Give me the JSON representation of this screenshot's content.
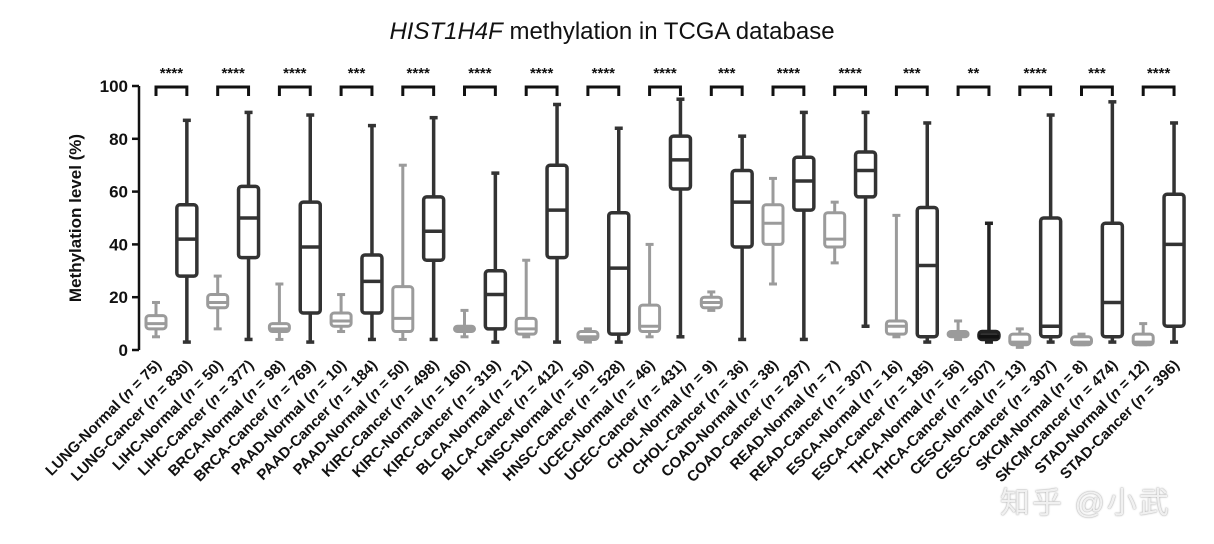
{
  "chart_data": {
    "type": "boxplot",
    "title_gene": "HIST1H4F",
    "title_rest": " methylation in TCGA database",
    "ylabel": "Methylation level (%)",
    "ylim": [
      0,
      100
    ],
    "yticks": [
      0,
      20,
      40,
      60,
      80,
      100
    ],
    "colors": {
      "normal": "#9b9b9b",
      "cancer": "#333333",
      "cesc_cancer": "#222222",
      "axis": "#111111"
    },
    "groups": [
      {
        "label": "LUNG-Normal",
        "n": "75",
        "type": "normal",
        "min": 5,
        "q1": 8,
        "median": 10,
        "q3": 13,
        "max": 18
      },
      {
        "label": "LUNG-Cancer",
        "n": "830",
        "type": "cancer",
        "min": 3,
        "q1": 28,
        "median": 42,
        "q3": 55,
        "max": 87
      },
      {
        "label": "LIHC-Normal",
        "n": "50",
        "type": "normal",
        "min": 8,
        "q1": 16,
        "median": 18,
        "q3": 21,
        "max": 28
      },
      {
        "label": "LIHC-Cancer",
        "n": "377",
        "type": "cancer",
        "min": 4,
        "q1": 35,
        "median": 50,
        "q3": 62,
        "max": 90
      },
      {
        "label": "BRCA-Normal",
        "n": "98",
        "type": "normal",
        "min": 4,
        "q1": 7,
        "median": 8,
        "q3": 10,
        "max": 25
      },
      {
        "label": "BRCA-Cancer",
        "n": "769",
        "type": "cancer",
        "min": 3,
        "q1": 14,
        "median": 39,
        "q3": 56,
        "max": 89
      },
      {
        "label": "PAAD-Normal",
        "n": "10",
        "type": "normal",
        "min": 7,
        "q1": 9,
        "median": 11,
        "q3": 14,
        "max": 21
      },
      {
        "label": "PAAD-Cancer",
        "n": "184",
        "type": "cancer",
        "min": 4,
        "q1": 14,
        "median": 26,
        "q3": 36,
        "max": 85
      },
      {
        "label": "PAAD-Normal",
        "n": "50",
        "type": "normal",
        "min": 4,
        "q1": 7,
        "median": 12,
        "q3": 24,
        "max": 70
      },
      {
        "label": "KIRC-Cancer",
        "n": "498",
        "type": "cancer",
        "min": 4,
        "q1": 34,
        "median": 45,
        "q3": 58,
        "max": 88
      },
      {
        "label": "KIRC-Normal",
        "n": "160",
        "type": "normal",
        "min": 5,
        "q1": 7,
        "median": 8,
        "q3": 9,
        "max": 15
      },
      {
        "label": "KIRC-Cancer",
        "n": "319",
        "type": "cancer",
        "min": 3,
        "q1": 8,
        "median": 21,
        "q3": 30,
        "max": 67
      },
      {
        "label": "BLCA-Normal",
        "n": "21",
        "type": "normal",
        "min": 5,
        "q1": 6,
        "median": 8,
        "q3": 12,
        "max": 34
      },
      {
        "label": "BLCA-Cancer",
        "n": "412",
        "type": "cancer",
        "min": 3,
        "q1": 35,
        "median": 53,
        "q3": 70,
        "max": 93
      },
      {
        "label": "HNSC-Normal",
        "n": "50",
        "type": "normal",
        "min": 3,
        "q1": 4,
        "median": 5,
        "q3": 7,
        "max": 8
      },
      {
        "label": "HNSC-Cancer",
        "n": "528",
        "type": "cancer",
        "min": 3,
        "q1": 6,
        "median": 31,
        "q3": 52,
        "max": 84
      },
      {
        "label": "UCEC-Normal",
        "n": "46",
        "type": "normal",
        "min": 5,
        "q1": 7,
        "median": 9,
        "q3": 17,
        "max": 40
      },
      {
        "label": "UCEC-Cancer",
        "n": "431",
        "type": "cancer",
        "min": 5,
        "q1": 61,
        "median": 72,
        "q3": 81,
        "max": 95
      },
      {
        "label": "CHOL-Normal",
        "n": "9",
        "type": "normal",
        "min": 15,
        "q1": 16,
        "median": 18,
        "q3": 20,
        "max": 22
      },
      {
        "label": "CHOL-Cancer",
        "n": "36",
        "type": "cancer",
        "min": 4,
        "q1": 39,
        "median": 56,
        "q3": 68,
        "max": 81
      },
      {
        "label": "COAD-Normal",
        "n": "38",
        "type": "normal",
        "min": 25,
        "q1": 40,
        "median": 48,
        "q3": 55,
        "max": 65
      },
      {
        "label": "COAD-Cancer",
        "n": "297",
        "type": "cancer",
        "min": 4,
        "q1": 53,
        "median": 64,
        "q3": 73,
        "max": 90
      },
      {
        "label": "READ-Normal",
        "n": "7",
        "type": "normal",
        "min": 33,
        "q1": 39,
        "median": 42,
        "q3": 52,
        "max": 56
      },
      {
        "label": "READ-Cancer",
        "n": "307",
        "type": "cancer",
        "min": 9,
        "q1": 58,
        "median": 68,
        "q3": 75,
        "max": 90
      },
      {
        "label": "ESCA-Normal",
        "n": "16",
        "type": "normal",
        "min": 5,
        "q1": 6,
        "median": 9,
        "q3": 11,
        "max": 51
      },
      {
        "label": "ESCA-Cancer",
        "n": "185",
        "type": "cancer",
        "min": 3,
        "q1": 5,
        "median": 32,
        "q3": 54,
        "max": 86
      },
      {
        "label": "THCA-Normal",
        "n": "56",
        "type": "normal",
        "min": 4,
        "q1": 5,
        "median": 6,
        "q3": 7,
        "max": 11
      },
      {
        "label": "THCA-Cancer",
        "n": "507",
        "type": "cancer_dark",
        "min": 3,
        "q1": 4,
        "median": 5,
        "q3": 7,
        "max": 48
      },
      {
        "label": "CESC-Normal",
        "n": "13",
        "type": "normal",
        "min": 1,
        "q1": 2,
        "median": 3,
        "q3": 6,
        "max": 8
      },
      {
        "label": "CESC-Cancer",
        "n": "307",
        "type": "cancer",
        "min": 3,
        "q1": 5,
        "median": 9,
        "q3": 50,
        "max": 89
      },
      {
        "label": "SKCM-Normal",
        "n": "8",
        "type": "normal",
        "min": 2,
        "q1": 2,
        "median": 3,
        "q3": 5,
        "max": 6
      },
      {
        "label": "SKCM-Cancer",
        "n": "474",
        "type": "cancer",
        "min": 3,
        "q1": 5,
        "median": 18,
        "q3": 48,
        "max": 94
      },
      {
        "label": "STAD-Normal",
        "n": "12",
        "type": "normal",
        "min": 2,
        "q1": 2,
        "median": 3,
        "q3": 6,
        "max": 10
      },
      {
        "label": "STAD-Cancer",
        "n": "396",
        "type": "cancer",
        "min": 3,
        "q1": 9,
        "median": 40,
        "q3": 59,
        "max": 86
      }
    ],
    "significance": [
      "****",
      "****",
      "****",
      "***",
      "****",
      "****",
      "****",
      "****",
      "****",
      "***",
      "****",
      "****",
      "***",
      "**",
      "****",
      "***",
      "****"
    ]
  },
  "watermark": "知乎 @小武"
}
